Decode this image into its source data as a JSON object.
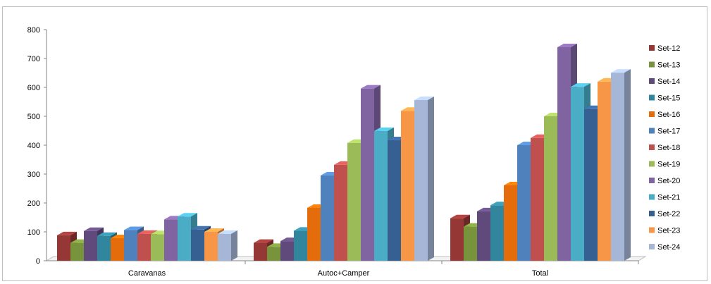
{
  "chart_data": {
    "type": "bar",
    "variant": "3d-clustered-column",
    "title": "",
    "xlabel": "",
    "ylabel": "",
    "ylim": [
      0,
      800
    ],
    "yticks": [
      0,
      100,
      200,
      300,
      400,
      500,
      600,
      700,
      800
    ],
    "grid": false,
    "legend_position": "right",
    "categories": [
      "Caravanas",
      "Autoc+Camper",
      "Total"
    ],
    "series": [
      {
        "name": "Set-12",
        "color": "#953735",
        "values": [
          88,
          62,
          147
        ]
      },
      {
        "name": "Set-13",
        "color": "#77933C",
        "values": [
          62,
          48,
          118
        ]
      },
      {
        "name": "Set-14",
        "color": "#604A7B",
        "values": [
          103,
          68,
          171
        ]
      },
      {
        "name": "Set-15",
        "color": "#31859C",
        "values": [
          86,
          104,
          192
        ]
      },
      {
        "name": "Set-16",
        "color": "#E46C0A",
        "values": [
          78,
          183,
          261
        ]
      },
      {
        "name": "Set-17",
        "color": "#4F81BD",
        "values": [
          106,
          295,
          400
        ]
      },
      {
        "name": "Set-18",
        "color": "#C0504D",
        "values": [
          93,
          332,
          425
        ]
      },
      {
        "name": "Set-19",
        "color": "#9BBB59",
        "values": [
          92,
          408,
          500
        ]
      },
      {
        "name": "Set-20",
        "color": "#8064A2",
        "values": [
          143,
          596,
          739
        ]
      },
      {
        "name": "Set-21",
        "color": "#4BACC6",
        "values": [
          153,
          449,
          602
        ]
      },
      {
        "name": "Set-22",
        "color": "#366092",
        "values": [
          108,
          417,
          525
        ]
      },
      {
        "name": "Set-23",
        "color": "#F79646",
        "values": [
          100,
          519,
          620
        ]
      },
      {
        "name": "Set-24",
        "color": "#A5B6D7",
        "values": [
          93,
          556,
          651
        ]
      }
    ]
  }
}
